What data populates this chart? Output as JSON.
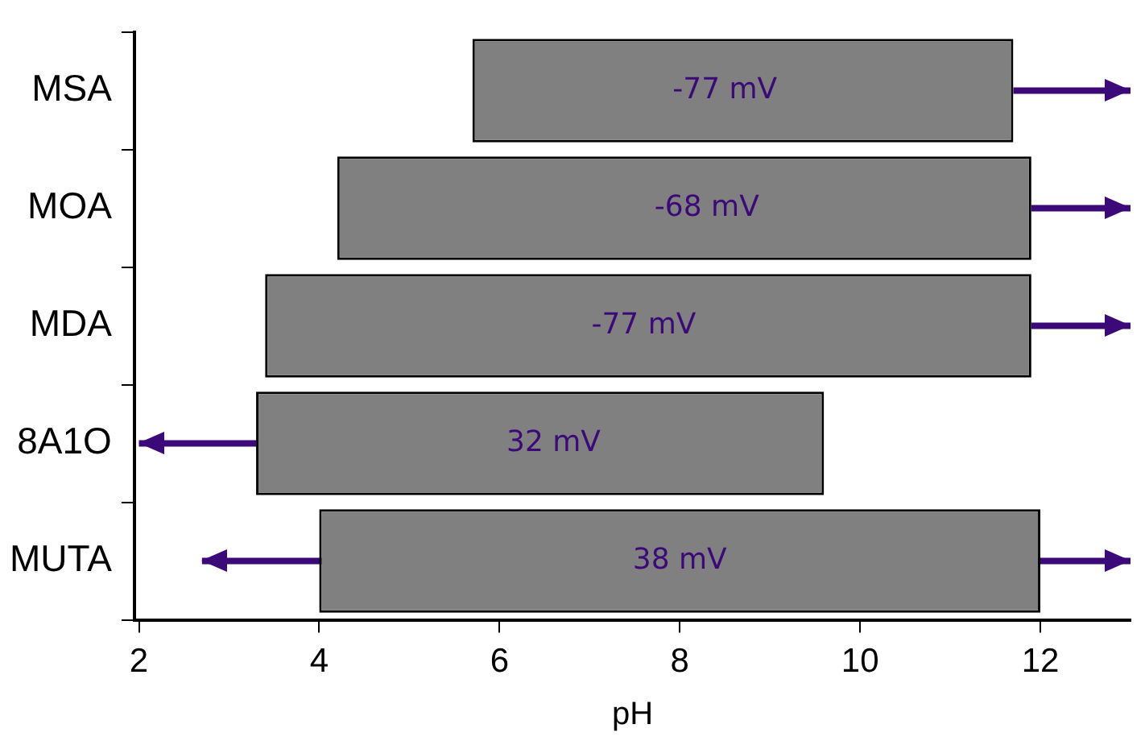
{
  "chart_data": {
    "type": "bar",
    "orientation": "horizontal",
    "xlabel": "pH",
    "categories": [
      "MSA",
      "MOA",
      "MDA",
      "8A1O",
      "MUTA"
    ],
    "base": [
      5.7,
      4.2,
      3.4,
      3.3,
      4.0
    ],
    "values": [
      6.0,
      7.7,
      8.5,
      6.3,
      8.0
    ],
    "color": "#808080",
    "annotations": [
      {
        "text": "-77 mV",
        "x": 8.5,
        "y": "MSA"
      },
      {
        "text": "-68 mV",
        "x": 8.3,
        "y": "MOA"
      },
      {
        "text": "-77 mV",
        "x": 7.6,
        "y": "MDA"
      },
      {
        "text": "32 mV",
        "x": 6.6,
        "y": "8A1O"
      },
      {
        "text": "38 mV",
        "x": 8.0,
        "y": "MUTA"
      }
    ],
    "errors": [
      [
        11.7,
        13.0
      ],
      [
        11.9,
        13.0
      ],
      [
        11.9,
        13.0
      ],
      [
        2.0,
        3.3
      ],
      [
        2.7,
        13.0
      ]
    ],
    "xlim": [
      1.95,
      13.0
    ],
    "xticks": [
      2,
      4,
      6,
      8,
      10,
      12
    ],
    "grid": false,
    "legend": false
  }
}
